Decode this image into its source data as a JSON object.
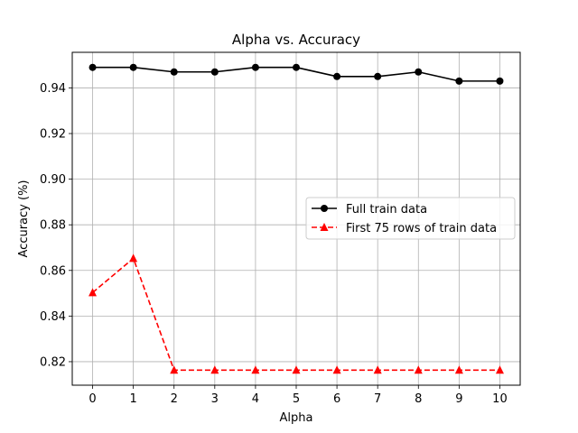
{
  "chart_data": {
    "type": "line",
    "title": "Alpha vs. Accuracy",
    "xlabel": "Alpha",
    "ylabel": "Accuracy (%)",
    "x": [
      0,
      1,
      2,
      3,
      4,
      5,
      6,
      7,
      8,
      9,
      10
    ],
    "xticks": [
      "0",
      "1",
      "2",
      "3",
      "4",
      "5",
      "6",
      "7",
      "8",
      "9",
      "10"
    ],
    "yticks": [
      "0.82",
      "0.84",
      "0.86",
      "0.88",
      "0.90",
      "0.92",
      "0.94"
    ],
    "xlim": [
      -0.5,
      10.5
    ],
    "ylim": [
      0.8097,
      0.9556
    ],
    "grid": true,
    "legend_position": "center-right",
    "series": [
      {
        "name": "Full train data",
        "values": [
          0.949,
          0.949,
          0.947,
          0.947,
          0.949,
          0.949,
          0.945,
          0.945,
          0.947,
          0.943,
          0.943
        ],
        "color": "#000000",
        "line_style": "solid",
        "marker": "circle"
      },
      {
        "name": "First 75 rows of train data",
        "values": [
          0.8503,
          0.8653,
          0.8163,
          0.8163,
          0.8163,
          0.8163,
          0.8163,
          0.8163,
          0.8163,
          0.8163,
          0.8163
        ],
        "color": "#ff0000",
        "line_style": "dashed",
        "marker": "triangle"
      }
    ]
  }
}
